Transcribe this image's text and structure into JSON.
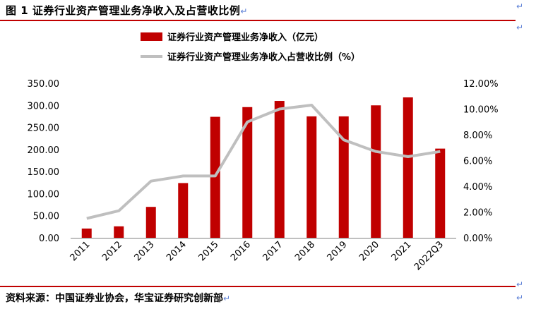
{
  "figure": {
    "title": "图 1  证券行业资产管理业务净收入及占营收比例",
    "source": "资料来源：中国证券业协会，华宝证券研究创新部",
    "return_mark": "↵"
  },
  "colors": {
    "bar": "#c00000",
    "line": "#bfbfbf",
    "rule": "#c00000"
  },
  "chart_data": {
    "type": "bar",
    "categories": [
      "2011",
      "2012",
      "2013",
      "2014",
      "2015",
      "2016",
      "2017",
      "2018",
      "2019",
      "2020",
      "2021",
      "2022Q3"
    ],
    "series": [
      {
        "name": "证券行业资产管理业务净收入（亿元）",
        "type": "bar",
        "axis": "left",
        "values": [
          21,
          26,
          70,
          124,
          274,
          296,
          310,
          275,
          275,
          300,
          318,
          202
        ]
      },
      {
        "name": "证券行业资产管理业务净收入占营收比例（%）",
        "type": "line",
        "axis": "right",
        "values": [
          1.5,
          2.1,
          4.4,
          4.8,
          4.8,
          9.0,
          10.0,
          10.3,
          7.6,
          6.7,
          6.3,
          6.7
        ]
      }
    ],
    "y_left": {
      "range": [
        0,
        350
      ],
      "ticks": [
        "0.00",
        "50.00",
        "100.00",
        "150.00",
        "200.00",
        "250.00",
        "300.00",
        "350.00"
      ]
    },
    "y_right": {
      "range": [
        0,
        12
      ],
      "ticks": [
        "0.00%",
        "2.00%",
        "4.00%",
        "6.00%",
        "8.00%",
        "10.00%",
        "12.00%"
      ]
    },
    "grid": false,
    "legend_position": "top"
  }
}
